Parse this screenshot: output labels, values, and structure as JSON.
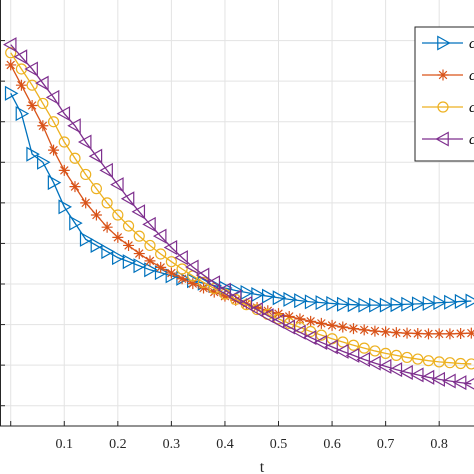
{
  "chart_data": {
    "type": "line",
    "xlabel": "t",
    "xlim": [
      -0.02,
      0.865
    ],
    "ylim": [
      -0.05,
      1.0
    ],
    "x_ticks": [
      0.1,
      0.2,
      0.3,
      0.4,
      0.5,
      0.6,
      0.7,
      0.8
    ],
    "x_tick_labels": [
      "0.1",
      "0.2",
      "0.3",
      "0.4",
      "0.5",
      "0.6",
      "0.7",
      "0.8"
    ],
    "grid": true,
    "legend_position": "top-right",
    "x": [
      0.0,
      0.02,
      0.04,
      0.06,
      0.08,
      0.1,
      0.12,
      0.14,
      0.16,
      0.18,
      0.2,
      0.22,
      0.24,
      0.26,
      0.28,
      0.3,
      0.32,
      0.34,
      0.36,
      0.38,
      0.4,
      0.42,
      0.44,
      0.46,
      0.48,
      0.5,
      0.52,
      0.54,
      0.56,
      0.58,
      0.6,
      0.62,
      0.64,
      0.66,
      0.68,
      0.7,
      0.72,
      0.74,
      0.76,
      0.78,
      0.8,
      0.82,
      0.84,
      0.86
    ],
    "series": [
      {
        "name": "c",
        "color": "#0072BD",
        "marker": "triangle-right",
        "values": [
          0.77,
          0.72,
          0.62,
          0.6,
          0.55,
          0.49,
          0.45,
          0.41,
          0.395,
          0.38,
          0.365,
          0.355,
          0.345,
          0.335,
          0.328,
          0.32,
          0.314,
          0.308,
          0.302,
          0.296,
          0.29,
          0.284,
          0.279,
          0.274,
          0.27,
          0.266,
          0.262,
          0.259,
          0.256,
          0.254,
          0.252,
          0.25,
          0.249,
          0.248,
          0.248,
          0.248,
          0.249,
          0.25,
          0.251,
          0.252,
          0.254,
          0.255,
          0.257,
          0.258
        ]
      },
      {
        "name": "c",
        "color": "#D95319",
        "marker": "asterisk",
        "values": [
          0.84,
          0.79,
          0.74,
          0.69,
          0.63,
          0.58,
          0.54,
          0.5,
          0.47,
          0.44,
          0.415,
          0.395,
          0.375,
          0.357,
          0.341,
          0.327,
          0.313,
          0.301,
          0.29,
          0.28,
          0.27,
          0.26,
          0.251,
          0.242,
          0.234,
          0.227,
          0.22,
          0.214,
          0.208,
          0.203,
          0.198,
          0.194,
          0.19,
          0.187,
          0.184,
          0.182,
          0.18,
          0.179,
          0.178,
          0.177,
          0.177,
          0.177,
          0.178,
          0.179
        ]
      },
      {
        "name": "c",
        "color": "#EDB120",
        "marker": "circle",
        "values": [
          0.87,
          0.83,
          0.79,
          0.745,
          0.7,
          0.65,
          0.61,
          0.57,
          0.535,
          0.5,
          0.47,
          0.443,
          0.418,
          0.395,
          0.374,
          0.355,
          0.337,
          0.32,
          0.304,
          0.289,
          0.275,
          0.262,
          0.249,
          0.237,
          0.225,
          0.214,
          0.203,
          0.193,
          0.183,
          0.174,
          0.165,
          0.157,
          0.149,
          0.142,
          0.135,
          0.129,
          0.124,
          0.119,
          0.115,
          0.111,
          0.108,
          0.106,
          0.104,
          0.103
        ]
      },
      {
        "name": "c",
        "color": "#7E2F8E",
        "marker": "triangle-left",
        "values": [
          0.89,
          0.86,
          0.83,
          0.795,
          0.76,
          0.72,
          0.69,
          0.65,
          0.615,
          0.58,
          0.545,
          0.51,
          0.478,
          0.447,
          0.418,
          0.39,
          0.365,
          0.342,
          0.322,
          0.303,
          0.285,
          0.268,
          0.252,
          0.237,
          0.222,
          0.208,
          0.194,
          0.181,
          0.168,
          0.156,
          0.145,
          0.134,
          0.124,
          0.114,
          0.105,
          0.097,
          0.089,
          0.082,
          0.076,
          0.07,
          0.065,
          0.061,
          0.057,
          0.054
        ]
      }
    ]
  }
}
